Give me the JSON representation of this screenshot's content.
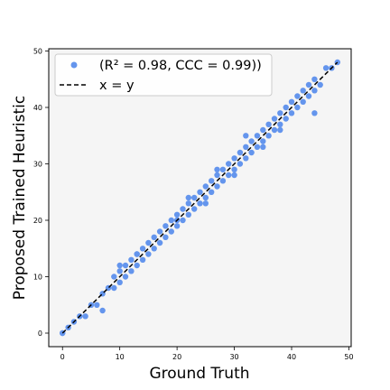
{
  "chart_data": {
    "type": "scatter",
    "xlabel": "Ground Truth",
    "ylabel": "Proposed Trained Heuristic",
    "xlim": [
      -2.4,
      50.4
    ],
    "ylim": [
      -2.4,
      50.4
    ],
    "xticks": [
      "0",
      "10",
      "20",
      "30",
      "40",
      "50"
    ],
    "yticks": [
      "0",
      "10",
      "20",
      "30",
      "40",
      "50"
    ],
    "grid": false,
    "legend_position": "top-left",
    "colors": {
      "points": "#6495ED",
      "reference_line": "#000000",
      "plot_background": "#F5F5F5"
    },
    "series": [
      {
        "name": "(R² = 0.98, CCC = 0.99))",
        "kind": "scatter",
        "points": [
          [
            0,
            0
          ],
          [
            0,
            0
          ],
          [
            1,
            1
          ],
          [
            2,
            2
          ],
          [
            3,
            3
          ],
          [
            4,
            3
          ],
          [
            5,
            5
          ],
          [
            6,
            5
          ],
          [
            7,
            7
          ],
          [
            7,
            4
          ],
          [
            8,
            8
          ],
          [
            9,
            8
          ],
          [
            9,
            10
          ],
          [
            10,
            9
          ],
          [
            10,
            11
          ],
          [
            11,
            10
          ],
          [
            11,
            12
          ],
          [
            12,
            11
          ],
          [
            12,
            13
          ],
          [
            13,
            12
          ],
          [
            13,
            14
          ],
          [
            14,
            13
          ],
          [
            14,
            15
          ],
          [
            15,
            14
          ],
          [
            15,
            16
          ],
          [
            16,
            15
          ],
          [
            16,
            17
          ],
          [
            17,
            16
          ],
          [
            17,
            18
          ],
          [
            18,
            17
          ],
          [
            18,
            19
          ],
          [
            19,
            18
          ],
          [
            19,
            20
          ],
          [
            20,
            19
          ],
          [
            20,
            21
          ],
          [
            21,
            20
          ],
          [
            21,
            22
          ],
          [
            22,
            21
          ],
          [
            22,
            23
          ],
          [
            23,
            22
          ],
          [
            23,
            24
          ],
          [
            24,
            23
          ],
          [
            24,
            25
          ],
          [
            25,
            24
          ],
          [
            25,
            26
          ],
          [
            26,
            25
          ],
          [
            26,
            27
          ],
          [
            27,
            26
          ],
          [
            27,
            28
          ],
          [
            28,
            27
          ],
          [
            28,
            29
          ],
          [
            29,
            28
          ],
          [
            29,
            30
          ],
          [
            30,
            29
          ],
          [
            30,
            31
          ],
          [
            31,
            30
          ],
          [
            31,
            32
          ],
          [
            32,
            31
          ],
          [
            32,
            33
          ],
          [
            33,
            32
          ],
          [
            33,
            34
          ],
          [
            34,
            33
          ],
          [
            34,
            35
          ],
          [
            35,
            34
          ],
          [
            35,
            36
          ],
          [
            36,
            35
          ],
          [
            36,
            37
          ],
          [
            37,
            36
          ],
          [
            37,
            38
          ],
          [
            38,
            37
          ],
          [
            38,
            39
          ],
          [
            39,
            38
          ],
          [
            39,
            40
          ],
          [
            40,
            39
          ],
          [
            40,
            41
          ],
          [
            41,
            40
          ],
          [
            41,
            42
          ],
          [
            42,
            41
          ],
          [
            42,
            43
          ],
          [
            43,
            42
          ],
          [
            43,
            44
          ],
          [
            44,
            43
          ],
          [
            44,
            45
          ],
          [
            45,
            44
          ],
          [
            46,
            47
          ],
          [
            47,
            47
          ],
          [
            48,
            48
          ],
          [
            44,
            39
          ],
          [
            35,
            33
          ],
          [
            13,
            14
          ],
          [
            10,
            12
          ],
          [
            25,
            23
          ],
          [
            30,
            28
          ],
          [
            38,
            36
          ],
          [
            20,
            20
          ],
          [
            22,
            24
          ],
          [
            27,
            29
          ],
          [
            32,
            35
          ]
        ]
      },
      {
        "name": "x = y",
        "kind": "line",
        "x": [
          0,
          48
        ],
        "y": [
          0,
          48
        ]
      }
    ]
  }
}
